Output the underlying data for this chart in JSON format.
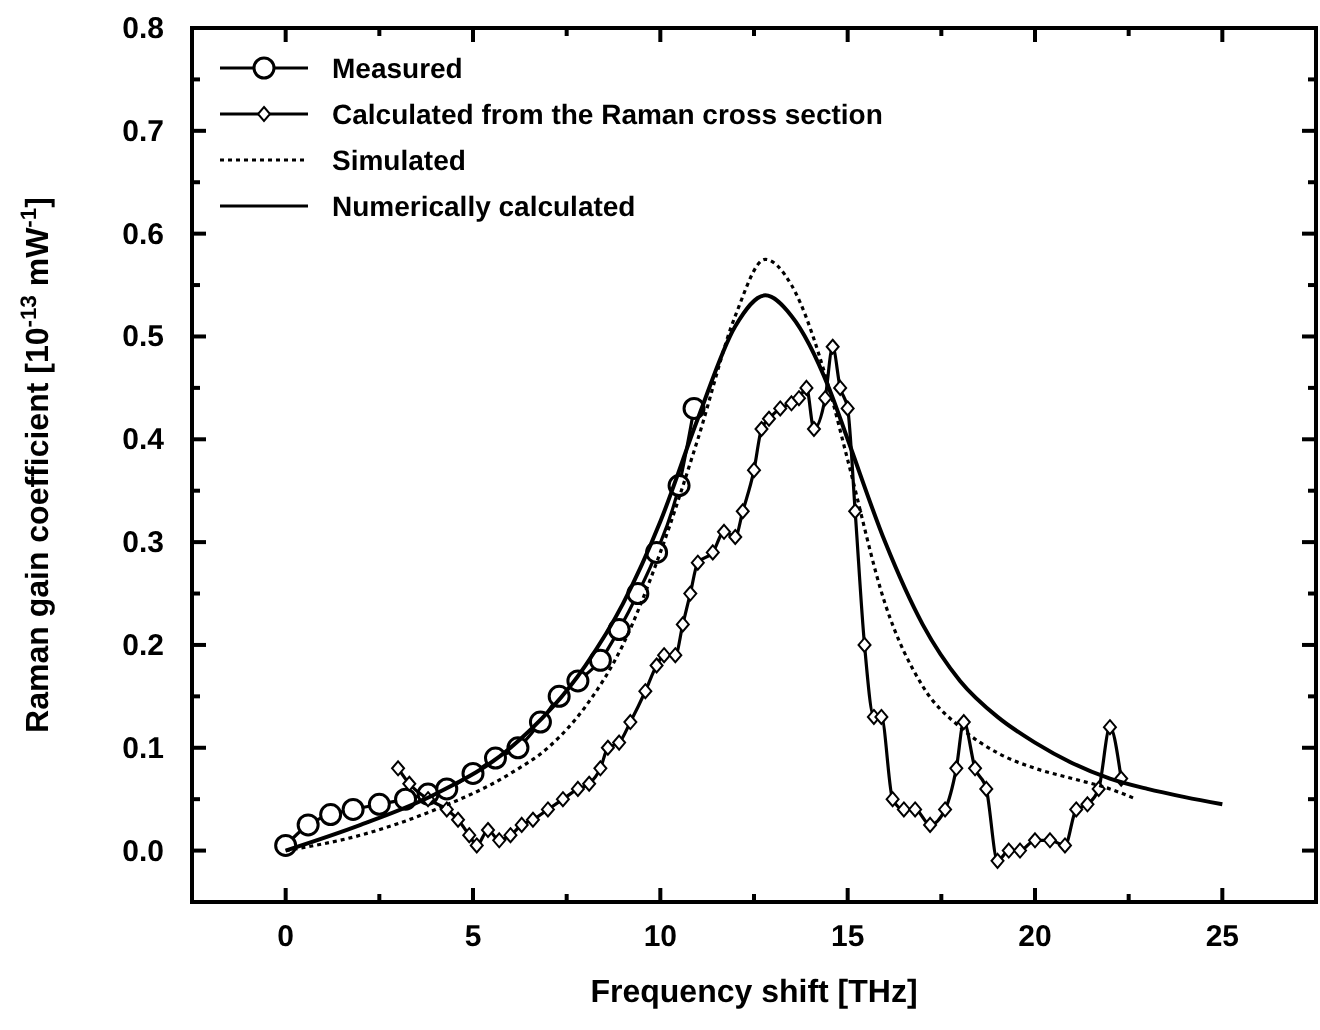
{
  "chart_data": {
    "type": "line",
    "xlabel": "Frequency shift [THz]",
    "ylabel": "Raman gain coefficient [10$^{-13}$ mW$^{-1}$]",
    "xlim": [
      -2.5,
      27.5
    ],
    "ylim": [
      -0.05,
      0.8
    ],
    "xticks": [
      0,
      {
        "value": 2.5,
        "label": null
      },
      5,
      {
        "value": 7.5,
        "label": null
      },
      10,
      {
        "value": 12.5,
        "label": null
      },
      15,
      {
        "value": 17.5,
        "label": null
      },
      20,
      {
        "value": 22.5,
        "label": null
      },
      25
    ],
    "yticks": [
      {
        "value": 0,
        "label": "0.0"
      },
      {
        "value": 0.05,
        "label": null
      },
      0.1,
      {
        "value": 0.15,
        "label": null
      },
      0.2,
      {
        "value": 0.25,
        "label": null
      },
      0.3,
      {
        "value": 0.35,
        "label": null
      },
      0.4,
      {
        "value": 0.45,
        "label": null
      },
      0.5,
      {
        "value": 0.55,
        "label": null
      },
      0.6,
      {
        "value": 0.65,
        "label": null
      },
      0.7,
      {
        "value": 0.75,
        "label": null
      },
      0.8
    ],
    "legend": "top left",
    "grid": false,
    "series": [
      {
        "name": "Measured",
        "color": "#000000",
        "marker": "circle",
        "line_style": "solid",
        "x": [
          0,
          0.6,
          1.2,
          1.8,
          2.5,
          3.2,
          3.8,
          4.3,
          5,
          5.6,
          6.2,
          6.8,
          7.3,
          7.8,
          8.4,
          8.9,
          9.4,
          9.9,
          10.5,
          10.9
        ],
        "values": [
          0.005,
          0.025,
          0.035,
          0.04,
          0.045,
          0.05,
          0.055,
          0.06,
          0.075,
          0.09,
          0.1,
          0.125,
          0.15,
          0.165,
          0.185,
          0.215,
          0.25,
          0.29,
          0.355,
          0.43
        ]
      },
      {
        "name": "Calculated from the Raman cross section",
        "color": "#000000",
        "marker": "diamond",
        "line_style": "solid",
        "x": [
          3,
          3.3,
          3.8,
          4.3,
          4.6,
          4.9,
          5.1,
          5.4,
          5.7,
          6,
          6.3,
          6.6,
          7,
          7.4,
          7.8,
          8.1,
          8.4,
          8.6,
          8.9,
          9.2,
          9.6,
          9.9,
          10.1,
          10.4,
          10.6,
          10.8,
          11,
          11.4,
          11.7,
          12,
          12.2,
          12.5,
          12.7,
          12.9,
          13.2,
          13.5,
          13.7,
          13.9,
          14.1,
          14.4,
          14.6,
          14.8,
          15,
          15.2,
          15.45,
          15.7,
          15.9,
          16.2,
          16.5,
          16.8,
          17.2,
          17.6,
          17.9,
          18.1,
          18.4,
          18.7,
          19,
          19.3,
          19.6,
          20,
          20.4,
          20.8,
          21.1,
          21.4,
          21.7,
          22,
          22.3
        ],
        "values": [
          0.08,
          0.065,
          0.05,
          0.04,
          0.03,
          0.015,
          0.005,
          0.02,
          0.01,
          0.015,
          0.025,
          0.03,
          0.04,
          0.05,
          0.06,
          0.065,
          0.08,
          0.1,
          0.105,
          0.125,
          0.155,
          0.18,
          0.19,
          0.19,
          0.22,
          0.25,
          0.28,
          0.29,
          0.31,
          0.305,
          0.33,
          0.37,
          0.41,
          0.42,
          0.43,
          0.435,
          0.44,
          0.45,
          0.41,
          0.44,
          0.49,
          0.45,
          0.43,
          0.33,
          0.2,
          0.13,
          0.13,
          0.05,
          0.04,
          0.04,
          0.025,
          0.04,
          0.08,
          0.125,
          0.08,
          0.06,
          -0.01,
          0,
          0,
          0.01,
          0.01,
          0.005,
          0.04,
          0.045,
          0.06,
          0.12,
          0.07
        ]
      },
      {
        "name": "Simulated",
        "color": "#000000",
        "marker": "none",
        "line_style": "dotted",
        "x": [
          0,
          2,
          4,
          6,
          7,
          8,
          9,
          10,
          11,
          12,
          12.8,
          13.5,
          14.5,
          15,
          16,
          17,
          18,
          19,
          20,
          21,
          22,
          22.7
        ],
        "values": [
          0,
          0.015,
          0.04,
          0.075,
          0.1,
          0.14,
          0.2,
          0.29,
          0.4,
          0.52,
          0.575,
          0.55,
          0.45,
          0.38,
          0.24,
          0.16,
          0.12,
          0.095,
          0.08,
          0.07,
          0.06,
          0.05
        ]
      },
      {
        "name": "Numerically calculated",
        "color": "#000000",
        "marker": "none",
        "line_style": "solid",
        "x": [
          0,
          2,
          4,
          6,
          8,
          9,
          10,
          11,
          12,
          12.8,
          13.5,
          14.5,
          15,
          16,
          17,
          18,
          19,
          20,
          21,
          22,
          23,
          24,
          25
        ],
        "values": [
          0,
          0.025,
          0.055,
          0.1,
          0.18,
          0.24,
          0.32,
          0.42,
          0.51,
          0.54,
          0.52,
          0.45,
          0.4,
          0.3,
          0.22,
          0.165,
          0.13,
          0.105,
          0.085,
          0.07,
          0.06,
          0.052,
          0.045
        ]
      }
    ]
  }
}
